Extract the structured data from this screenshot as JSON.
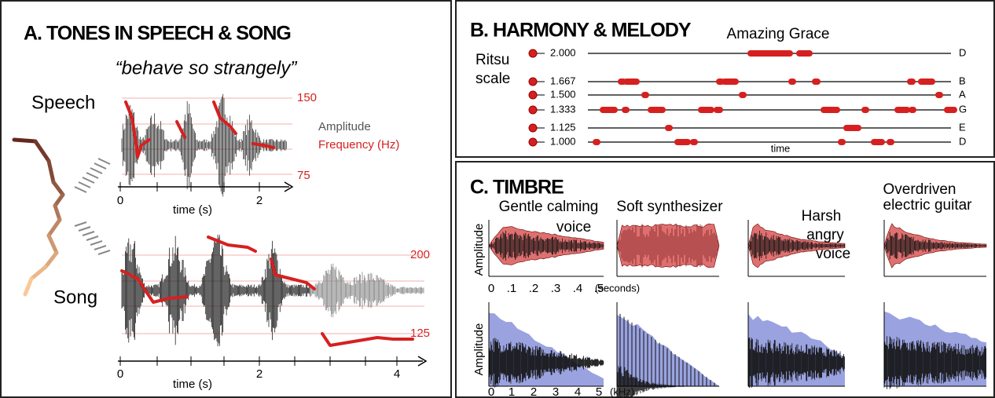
{
  "panel_a": {
    "title": "A. TONES IN SPEECH & SONG",
    "quote": "“behave so strangely”",
    "speech": "Speech",
    "song": "Song",
    "legend_amplitude": "Amplitude",
    "legend_frequency": "Frequency (Hz)",
    "speech_freq_high": "150",
    "speech_freq_low": "75",
    "speech_time_ticks": [
      "0",
      "2"
    ],
    "speech_time_label": "time (s)",
    "song_freq_high": "200",
    "song_freq_low": "125",
    "song_time_ticks": [
      "0",
      "2",
      "4"
    ],
    "song_time_label": "time (s)"
  },
  "panel_b": {
    "title": "B. HARMONY & MELODY",
    "song_title": "Amazing Grace",
    "scale_label": [
      "Ritsu",
      "scale"
    ],
    "rows": [
      {
        "ratio": "2.000",
        "note": "D"
      },
      {
        "ratio": "1.667",
        "note": "B"
      },
      {
        "ratio": "1.500",
        "note": "A"
      },
      {
        "ratio": "1.333",
        "note": "G"
      },
      {
        "ratio": "1.125",
        "note": "E"
      },
      {
        "ratio": "1.000",
        "note": "D"
      }
    ],
    "time_label": "time"
  },
  "panel_c": {
    "title": "C. TIMBRE",
    "amplitude_label": "Amplitude",
    "sounds": [
      {
        "label": [
          "Gentle calming",
          "voice"
        ]
      },
      {
        "label": [
          "Soft synthesizer"
        ]
      },
      {
        "label": [
          "Harsh",
          "angry",
          "voice"
        ]
      },
      {
        "label": [
          "Overdriven",
          "electric guitar"
        ]
      }
    ],
    "time_ticks": [
      "0",
      ".1",
      ".2",
      ".3",
      ".4",
      ".5"
    ],
    "time_unit": "(seconds)",
    "freq_ticks": [
      "0",
      "1",
      "2",
      "3",
      "4",
      "5"
    ],
    "freq_unit": "(kHz)"
  }
}
